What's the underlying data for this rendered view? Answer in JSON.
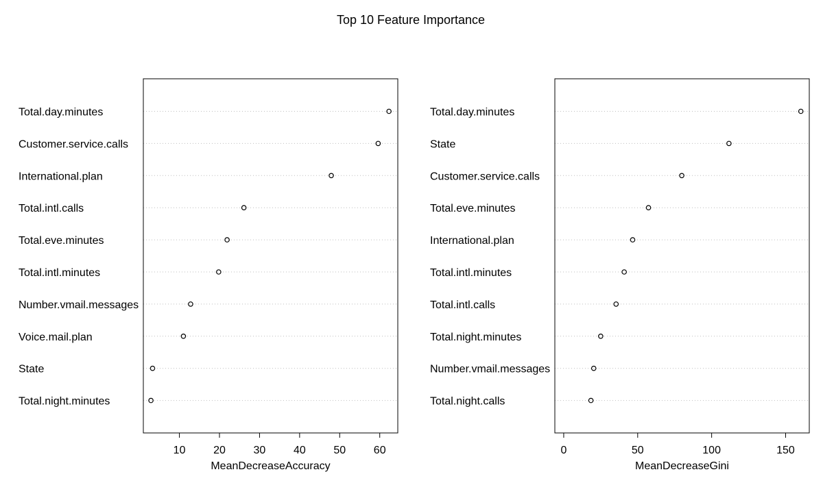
{
  "title": "Top 10 Feature Importance",
  "chart_data": [
    {
      "type": "scatter",
      "subtype": "dotchart",
      "xlabel": "MeanDecreaseAccuracy",
      "ylabel": "",
      "xlim": [
        1.0,
        64.5
      ],
      "xticks": [
        10,
        20,
        30,
        40,
        50,
        60
      ],
      "grid": "dotted horizontal lines per row",
      "categories": [
        "Total.day.minutes",
        "Customer.service.calls",
        "International.plan",
        "Total.intl.calls",
        "Total.eve.minutes",
        "Total.intl.minutes",
        "Number.vmail.messages",
        "Voice.mail.plan",
        "State",
        "Total.night.minutes"
      ],
      "values": [
        62.3,
        59.6,
        47.9,
        26.1,
        21.9,
        19.8,
        12.8,
        11.0,
        3.3,
        2.9
      ]
    },
    {
      "type": "scatter",
      "subtype": "dotchart",
      "xlabel": "MeanDecreaseGini",
      "ylabel": "",
      "xlim": [
        -6.0,
        166.0
      ],
      "xticks": [
        0,
        50,
        100,
        150
      ],
      "grid": "dotted horizontal lines per row",
      "categories": [
        "Total.day.minutes",
        "State",
        "Customer.service.calls",
        "Total.eve.minutes",
        "International.plan",
        "Total.intl.minutes",
        "Total.intl.calls",
        "Total.night.minutes",
        "Number.vmail.messages",
        "Total.night.calls"
      ],
      "values": [
        160.3,
        111.7,
        79.8,
        57.3,
        46.6,
        40.9,
        35.4,
        25.0,
        20.3,
        18.4
      ]
    }
  ],
  "colors": {
    "point": "#000000",
    "grid": "#bebebe",
    "axis": "#000000"
  }
}
